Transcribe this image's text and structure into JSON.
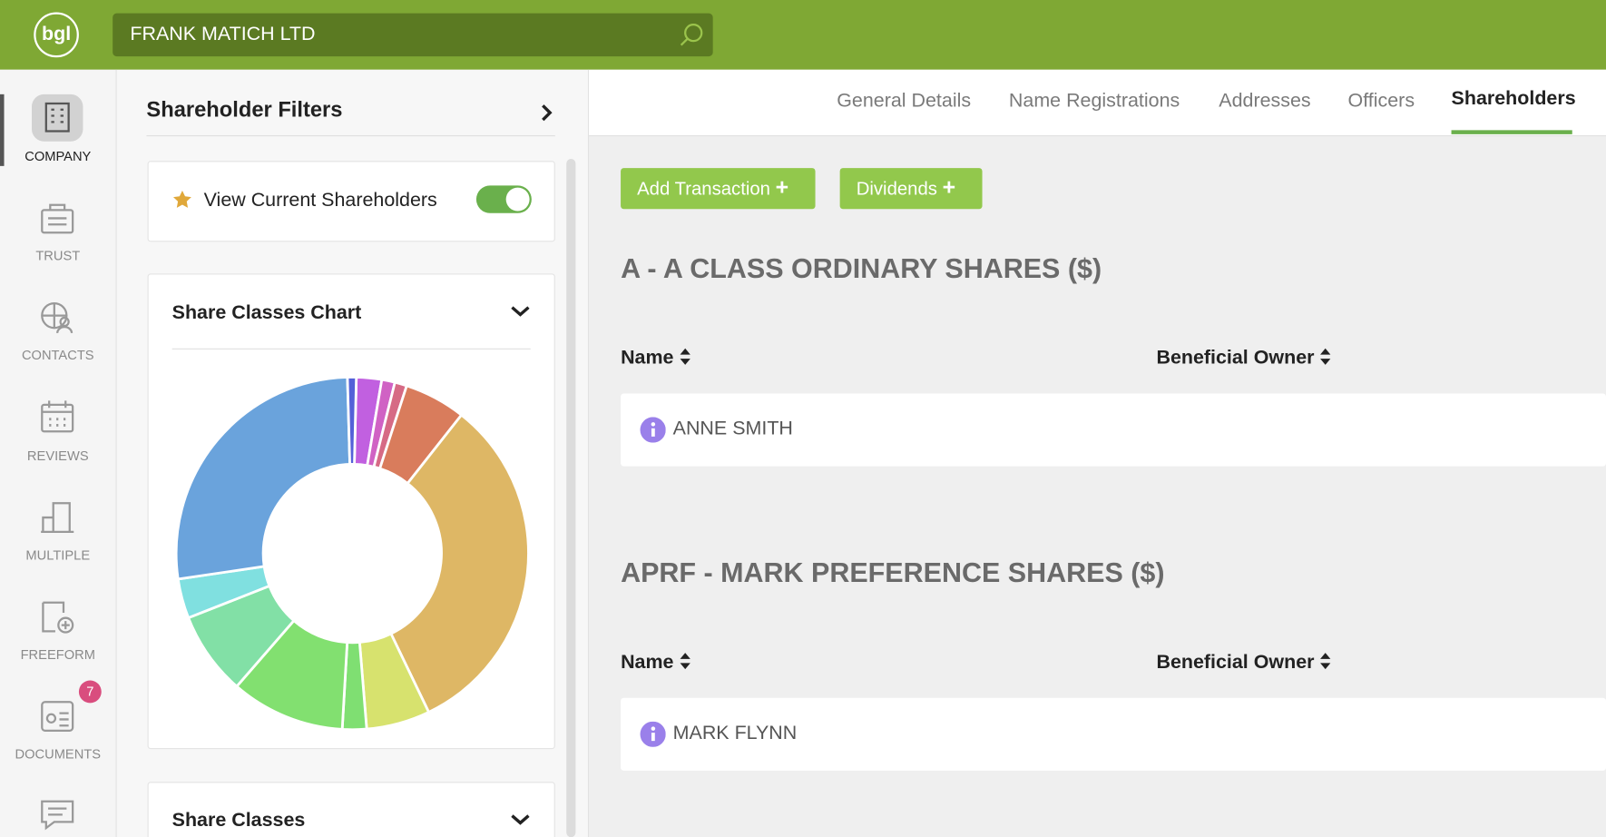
{
  "header": {
    "logo": "bgl",
    "search": "FRANK MATICH LTD"
  },
  "sidebar": {
    "items": [
      "COMPANY",
      "TRUST",
      "CONTACTS",
      "REVIEWS",
      "MULTIPLE",
      "FREEFORM",
      "DOCUMENTS"
    ],
    "badge": "7"
  },
  "filters": {
    "title": "Shareholder Filters",
    "toggle_label": "View Current Shareholders",
    "chart_title": "Share Classes Chart",
    "share_classes_title": "Share Classes"
  },
  "chart_data": {
    "type": "donut",
    "values": [
      2.3,
      1.2,
      1.1,
      5.6,
      32,
      5.8,
      2.2,
      10.4,
      7.6,
      3.6,
      26.7,
      0.8
    ],
    "colors": [
      "#c160e0",
      "#d062c4",
      "#d66a85",
      "#d97c5c",
      "#deb765",
      "#d7e26e",
      "#7fdf72",
      "#82e070",
      "#82e0a6",
      "#80e0e0",
      "#6aa3dc",
      "#5461d8"
    ]
  },
  "tabs": [
    "General Details",
    "Name Registrations",
    "Addresses",
    "Officers",
    "Shareholders"
  ],
  "buttons": [
    "Add Transaction",
    "Dividends"
  ],
  "sections": [
    {
      "title": "A - A CLASS ORDINARY SHARES ($)",
      "columns": [
        "Name",
        "Beneficial Owner"
      ],
      "rows": [
        "ANNE SMITH"
      ]
    },
    {
      "title": "APRF - MARK PREFERENCE SHARES ($)",
      "columns": [
        "Name",
        "Beneficial Owner"
      ],
      "rows": [
        "MARK FLYNN"
      ]
    }
  ]
}
